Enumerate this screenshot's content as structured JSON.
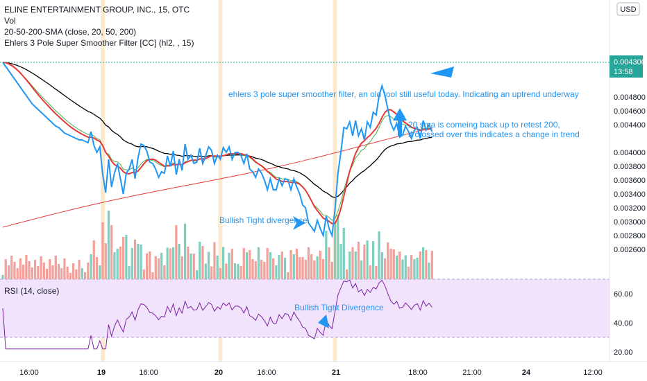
{
  "legend": {
    "title": "ELINE ENTERTAINMENT GROUP, INC., 15, OTC",
    "vol": "Vol",
    "sma": "20-50-200-SMA (close, 20, 50, 200)",
    "ehlers": "Ehlers 3 Pole Super Smoother Filter [CC] (hl2, , 15)",
    "rsi": "RSI (14, close)"
  },
  "currency": "USD",
  "price_tag": {
    "value": "0.004300",
    "countdown": "13:58"
  },
  "colors": {
    "price": "#2196f3",
    "ehlers": "#e53935",
    "sma_fast": "#1e9e3a",
    "sma_mid": "#4caf50",
    "sma_slow": "#000000",
    "sma_200": "#e53935",
    "rsi": "#7b1fa2",
    "rsi_band": "#f1e3fb",
    "vol_up": "#7fcfc0",
    "vol_down": "#f4a09a",
    "session": "#fbe9d0",
    "tag": "#26a69a"
  },
  "annotations": {
    "ehlers_note": "ehlers 3 pole super smoother filter, an old tool still useful today. Indicating an uptrend underway",
    "sma_note_1": "20 sma is comeing back up to retest 200,",
    "sma_note_2": "if crossed over this indicates a change in trend",
    "divergence_price": "Bullish Tight divergence",
    "divergence_rsi": "Bullish Tight Divergence"
  },
  "chart_data": {
    "type": "line",
    "symbol": "ELINE ENTERTAINMENT GROUP, INC., 15, OTC",
    "price_axis": {
      "ticks": [
        "0.004800",
        "0.004600",
        "0.004400",
        "0.004300",
        "0.004000",
        "0.003800",
        "0.003600",
        "0.003400",
        "0.003200",
        "0.003000",
        "0.002800",
        "0.002600"
      ]
    },
    "rsi_axis": {
      "ticks": [
        "60.00",
        "40.00",
        "20.00"
      ],
      "band": [
        30,
        70
      ]
    },
    "x_ticks": [
      "16:00",
      "19",
      "16:00",
      "20",
      "16:00",
      "21",
      "18:00",
      "21:00",
      "24",
      "12:00"
    ],
    "bars": 145,
    "session_breaks": [
      34,
      74,
      113
    ],
    "series": [
      {
        "name": "Price",
        "type": "line",
        "values": [
          0.0053,
          0.00524,
          0.00518,
          0.00512,
          0.00506,
          0.005,
          0.00494,
          0.00488,
          0.00482,
          0.00476,
          0.0047,
          0.00466,
          0.00462,
          0.00458,
          0.00454,
          0.0045,
          0.00446,
          0.00442,
          0.00438,
          0.00436,
          0.00432,
          0.00428,
          0.00426,
          0.00424,
          0.00422,
          0.0042,
          0.00418,
          0.00418,
          0.00416,
          0.00414,
          0.0043,
          0.0041,
          0.004,
          0.00408,
          0.00368,
          0.00342,
          0.0039,
          0.0035,
          0.0037,
          0.00384,
          0.00362,
          0.0034,
          0.0037,
          0.00376,
          0.0039,
          0.00362,
          0.00392,
          0.00412,
          0.0041,
          0.00402,
          0.00386,
          0.00384,
          0.00376,
          0.00364,
          0.00372,
          0.0037,
          0.00395,
          0.0038,
          0.00402,
          0.00368,
          0.0039,
          0.00374,
          0.00412,
          0.0039,
          0.00396,
          0.00384,
          0.00386,
          0.00406,
          0.00384,
          0.00395,
          0.00408,
          0.00403,
          0.00384,
          0.00396,
          0.0039,
          0.00407,
          0.004,
          0.00408,
          0.0039,
          0.004,
          0.004,
          0.00396,
          0.00384,
          0.00398,
          0.00376,
          0.00372,
          0.00364,
          0.00376,
          0.0037,
          0.0036,
          0.00346,
          0.00362,
          0.00346,
          0.00346,
          0.00362,
          0.00352,
          0.00362,
          0.0036,
          0.00346,
          0.00362,
          0.0035,
          0.0034,
          0.00324,
          0.0032,
          0.00298,
          0.00292,
          0.00286,
          0.00302,
          0.0029,
          0.0028,
          0.00308,
          0.0029,
          0.0028,
          0.00318,
          0.0037,
          0.004,
          0.00436,
          0.00434,
          0.00444,
          0.00424,
          0.00446,
          0.00424,
          0.00434,
          0.00418,
          0.00444,
          0.00436,
          0.00458,
          0.00454,
          0.00482,
          0.00496,
          0.00482,
          0.00462,
          0.00442,
          0.00432,
          0.00442,
          0.00422,
          0.00425,
          0.00438,
          0.0043,
          0.0042,
          0.00432,
          0.00436,
          0.0042,
          0.00446,
          0.00432,
          0.0044,
          0.0043
        ]
      },
      {
        "name": "Ehlers 3 Pole Super Smoother",
        "type": "line"
      },
      {
        "name": "SMA 20",
        "type": "line"
      },
      {
        "name": "SMA 50",
        "type": "line"
      },
      {
        "name": "SMA 200",
        "type": "line"
      },
      {
        "name": "Vol",
        "type": "bar"
      },
      {
        "name": "RSI",
        "type": "line"
      }
    ]
  }
}
